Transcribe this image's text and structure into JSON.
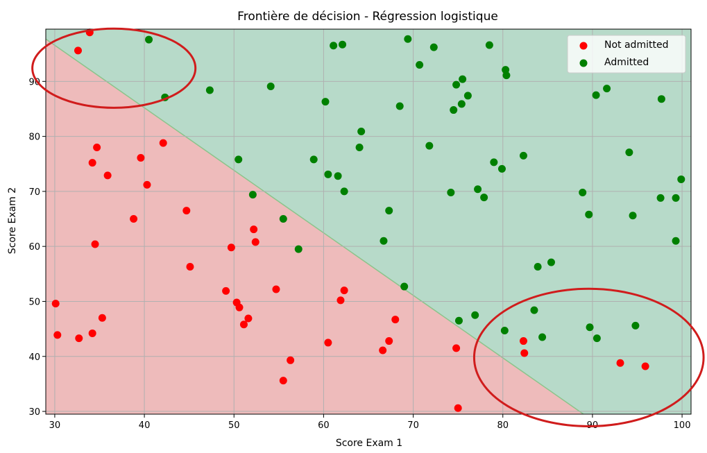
{
  "chart_data": {
    "type": "scatter",
    "title": "Frontière de décision - Régression logistique",
    "xlabel": "Score Exam 1",
    "ylabel": "Score Exam 2",
    "xlim": [
      29,
      101
    ],
    "ylim": [
      29.5,
      99.5
    ],
    "x_ticks": [
      30,
      40,
      50,
      60,
      70,
      80,
      90,
      100
    ],
    "y_ticks": [
      30,
      40,
      50,
      60,
      70,
      80,
      90
    ],
    "grid": true,
    "legend_placement": "top-right",
    "decision_boundary": {
      "points": [
        [
          29,
          97.7
        ],
        [
          89,
          29.5
        ]
      ],
      "region_colors": {
        "not_admitted": "#eebbbb",
        "admitted": "#b7dac9"
      },
      "line_color": "#8bc48b"
    },
    "series": [
      {
        "name": "Not admitted",
        "color": "#ff0000",
        "points": [
          [
            33.9,
            98.9
          ],
          [
            32.6,
            95.6
          ],
          [
            42.1,
            78.8
          ],
          [
            34.7,
            78.0
          ],
          [
            34.2,
            75.2
          ],
          [
            39.6,
            76.1
          ],
          [
            35.9,
            72.9
          ],
          [
            40.3,
            71.2
          ],
          [
            44.7,
            66.5
          ],
          [
            38.8,
            65.0
          ],
          [
            52.2,
            63.1
          ],
          [
            52.4,
            60.8
          ],
          [
            49.7,
            59.8
          ],
          [
            34.5,
            60.4
          ],
          [
            45.1,
            56.3
          ],
          [
            54.7,
            52.2
          ],
          [
            49.1,
            51.9
          ],
          [
            62.3,
            52.0
          ],
          [
            61.9,
            50.2
          ],
          [
            50.3,
            49.8
          ],
          [
            50.6,
            48.9
          ],
          [
            30.1,
            49.6
          ],
          [
            51.6,
            46.9
          ],
          [
            35.3,
            47.0
          ],
          [
            51.1,
            45.8
          ],
          [
            30.3,
            43.9
          ],
          [
            32.7,
            43.3
          ],
          [
            34.2,
            44.2
          ],
          [
            68.0,
            46.7
          ],
          [
            67.3,
            42.8
          ],
          [
            60.5,
            42.5
          ],
          [
            74.8,
            41.5
          ],
          [
            66.6,
            41.1
          ],
          [
            56.3,
            39.3
          ],
          [
            55.5,
            35.6
          ],
          [
            75.0,
            30.6
          ],
          [
            82.3,
            42.8
          ],
          [
            82.4,
            40.6
          ],
          [
            93.1,
            38.8
          ],
          [
            95.9,
            38.2
          ]
        ]
      },
      {
        "name": "Admitted",
        "color": "#008000",
        "points": [
          [
            40.5,
            97.6
          ],
          [
            42.3,
            87.1
          ],
          [
            47.3,
            88.4
          ],
          [
            54.1,
            89.1
          ],
          [
            61.1,
            96.5
          ],
          [
            62.1,
            96.7
          ],
          [
            69.4,
            97.7
          ],
          [
            72.3,
            96.2
          ],
          [
            78.5,
            96.6
          ],
          [
            70.7,
            93.0
          ],
          [
            80.3,
            92.1
          ],
          [
            80.4,
            91.1
          ],
          [
            75.5,
            90.4
          ],
          [
            74.8,
            89.4
          ],
          [
            60.2,
            86.3
          ],
          [
            68.5,
            85.5
          ],
          [
            74.5,
            84.8
          ],
          [
            75.4,
            85.9
          ],
          [
            76.1,
            87.4
          ],
          [
            91.6,
            88.7
          ],
          [
            90.4,
            87.5
          ],
          [
            97.7,
            86.8
          ],
          [
            64.2,
            80.9
          ],
          [
            64.0,
            78.0
          ],
          [
            71.8,
            78.3
          ],
          [
            50.5,
            75.8
          ],
          [
            58.9,
            75.8
          ],
          [
            79.0,
            75.3
          ],
          [
            82.3,
            76.5
          ],
          [
            94.1,
            77.1
          ],
          [
            79.9,
            74.1
          ],
          [
            60.5,
            73.1
          ],
          [
            61.6,
            72.8
          ],
          [
            62.3,
            70.0
          ],
          [
            77.2,
            70.4
          ],
          [
            74.2,
            69.8
          ],
          [
            77.9,
            68.9
          ],
          [
            88.9,
            69.8
          ],
          [
            97.6,
            68.8
          ],
          [
            99.3,
            68.8
          ],
          [
            99.9,
            72.2
          ],
          [
            52.1,
            69.4
          ],
          [
            67.3,
            66.5
          ],
          [
            55.5,
            65.0
          ],
          [
            89.6,
            65.8
          ],
          [
            94.5,
            65.6
          ],
          [
            66.7,
            61.0
          ],
          [
            99.3,
            61.0
          ],
          [
            57.2,
            59.5
          ],
          [
            85.4,
            57.1
          ],
          [
            83.9,
            56.3
          ],
          [
            69.0,
            52.7
          ],
          [
            75.1,
            46.5
          ],
          [
            76.9,
            47.5
          ],
          [
            83.5,
            48.4
          ],
          [
            89.7,
            45.3
          ],
          [
            94.8,
            45.6
          ],
          [
            80.2,
            44.7
          ],
          [
            84.4,
            43.5
          ],
          [
            90.5,
            43.3
          ]
        ]
      }
    ],
    "annotations": [
      {
        "shape": "ellipse",
        "color": "#d01c1c",
        "cx": 36.6,
        "cy": 92.4,
        "rx": 9.1,
        "ry": 7.2
      },
      {
        "shape": "ellipse",
        "color": "#d01c1c",
        "cx": 89.6,
        "cy": 39.8,
        "rx": 12.8,
        "ry": 12.5
      }
    ]
  }
}
